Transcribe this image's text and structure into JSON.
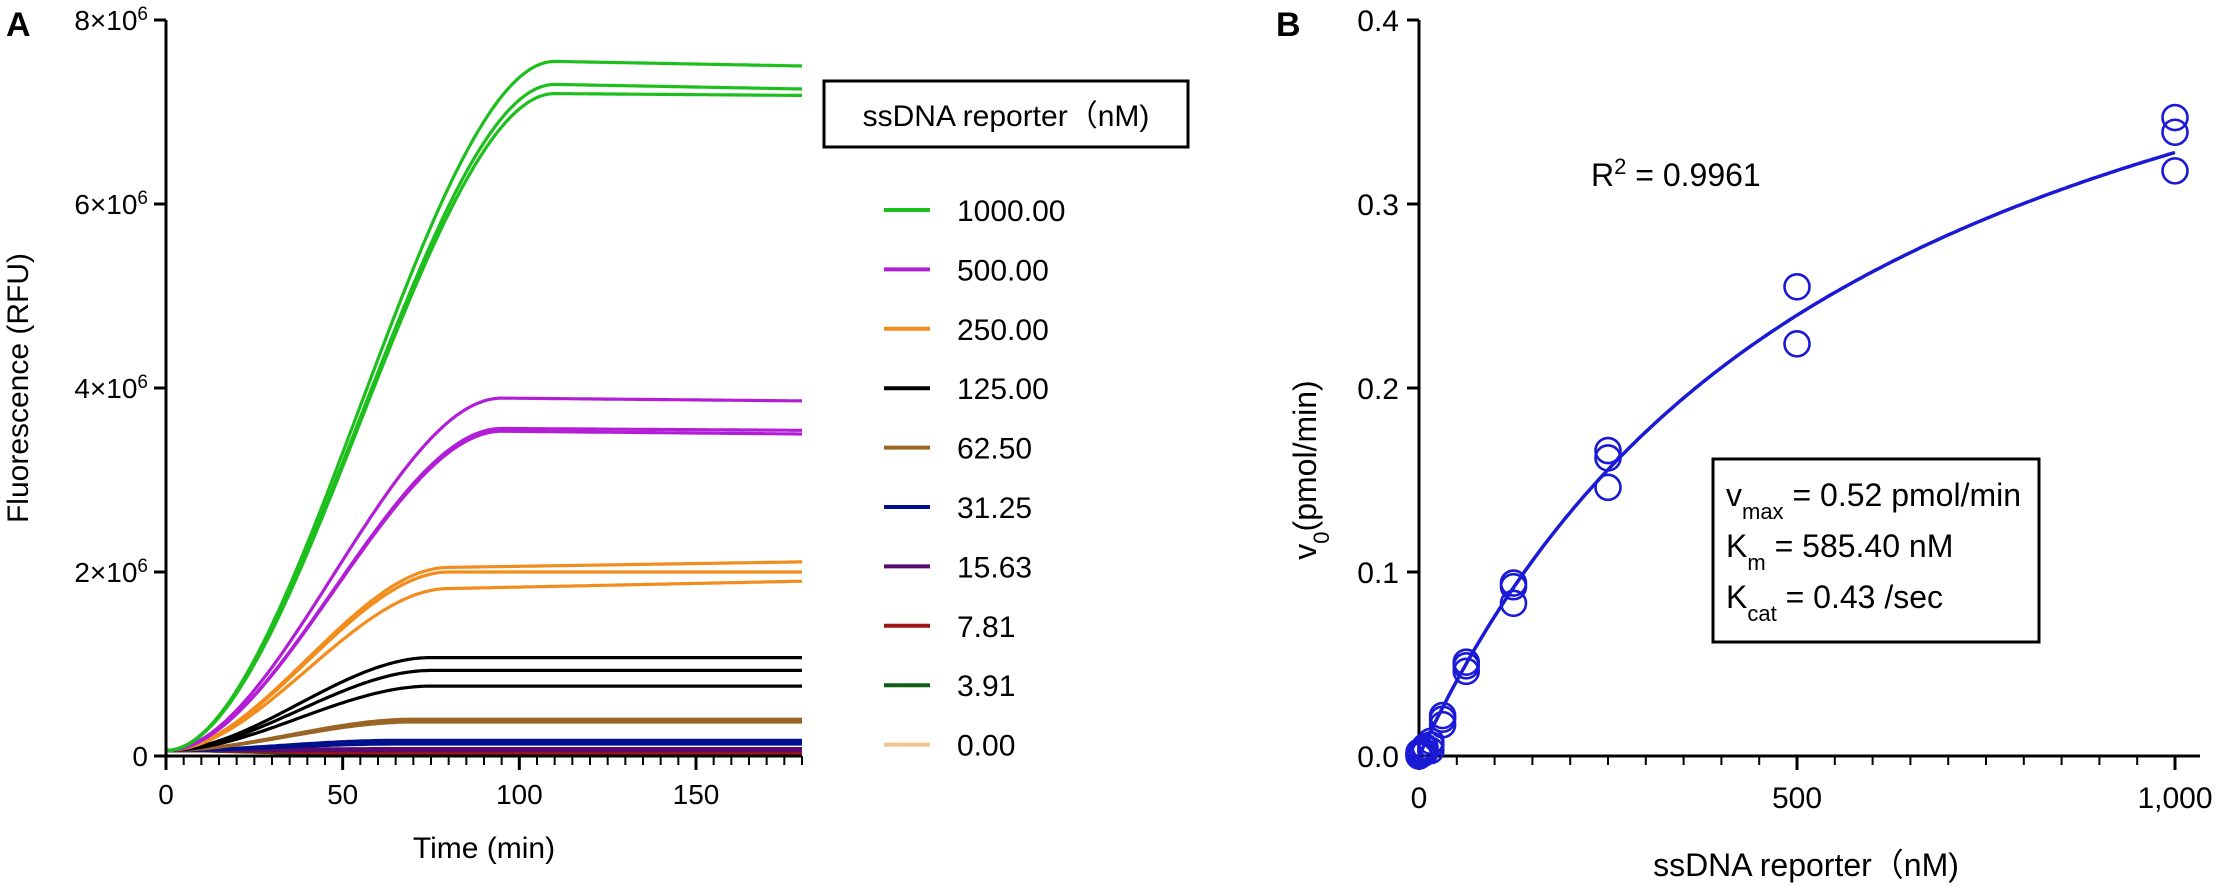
{
  "chart_data": [
    {
      "panel": "A",
      "type": "line",
      "xlabel": "Time (min)",
      "ylabel": "Fluorescence (RFU)",
      "xlim": [
        0,
        180
      ],
      "ylim": [
        0,
        8000000
      ],
      "xticks": [
        0,
        50,
        100,
        150
      ],
      "xtick_labels": [
        "0",
        "50",
        "100",
        "150"
      ],
      "yticks": [
        0,
        2000000,
        4000000,
        6000000,
        8000000
      ],
      "ytick_labels": [
        "0",
        "2×10",
        "4×10",
        "6×10",
        "8×10"
      ],
      "ytick_exponent": "6",
      "grid": false,
      "legend_title": "ssDNA reporter（nM)",
      "legend_position": "right",
      "series": [
        {
          "name": "1000.00",
          "color": "#1cbf1c",
          "replicate_plateaus": [
            7550000,
            7300000,
            7200000
          ],
          "t_plateau": 110,
          "end_drift": [
            -50000,
            -50000,
            -20000
          ]
        },
        {
          "name": "500.00",
          "color": "#b21ed6",
          "replicate_plateaus": [
            3890000,
            3560000,
            3530000
          ],
          "t_plateau": 95,
          "end_drift": [
            -30000,
            -20000,
            -30000
          ]
        },
        {
          "name": "250.00",
          "color": "#f28c1c",
          "replicate_plateaus": [
            2050000,
            2000000,
            1820000
          ],
          "t_plateau": 80,
          "end_drift": [
            60000,
            0,
            80000
          ]
        },
        {
          "name": "125.00",
          "color": "#000000",
          "replicate_plateaus": [
            1070000,
            930000,
            760000
          ],
          "t_plateau": 75,
          "end_drift": [
            0,
            0,
            0
          ]
        },
        {
          "name": "62.50",
          "color": "#9a6424",
          "replicate_plateaus": [
            400000,
            390000,
            370000
          ],
          "t_plateau": 70,
          "end_drift": [
            0,
            0,
            0
          ]
        },
        {
          "name": "31.25",
          "color": "#00108a",
          "replicate_plateaus": [
            170000,
            150000,
            130000
          ],
          "t_plateau": 65,
          "end_drift": [
            0,
            0,
            0
          ]
        },
        {
          "name": "15.63",
          "color": "#5a0a6e",
          "replicate_plateaus": [
            80000,
            70000,
            60000
          ],
          "t_plateau": 60,
          "end_drift": [
            0,
            0,
            0
          ]
        },
        {
          "name": "7.81",
          "color": "#a01414",
          "replicate_plateaus": [
            40000,
            35000,
            30000
          ],
          "t_plateau": 60,
          "end_drift": [
            0,
            0,
            0
          ]
        },
        {
          "name": "3.91",
          "color": "#0e5e14",
          "replicate_plateaus": [
            20000,
            18000,
            15000
          ],
          "t_plateau": 60,
          "end_drift": [
            0,
            0,
            0
          ]
        },
        {
          "name": "0.00",
          "color": "#f0c48a",
          "replicate_plateaus": [
            5000,
            4000,
            3000
          ],
          "t_plateau": 60,
          "end_drift": [
            0,
            0,
            0
          ]
        }
      ]
    },
    {
      "panel": "B",
      "type": "scatter",
      "xlabel": "ssDNA reporter（nM)",
      "ylabel": "v0(pmol/min)",
      "ylabel_main": "v",
      "ylabel_sub": "0",
      "ylabel_rest": "(pmol/min)",
      "xlim": [
        0,
        1000
      ],
      "ylim": [
        0,
        0.4
      ],
      "xticks": [
        0,
        500,
        1000
      ],
      "xtick_labels": [
        "0",
        "500",
        "1,000"
      ],
      "yticks": [
        0,
        0.1,
        0.2,
        0.3,
        0.4
      ],
      "ytick_labels": [
        "0.0",
        "0.1",
        "0.2",
        "0.3",
        "0.4"
      ],
      "grid": false,
      "color": "#1a1ad6",
      "points": [
        [
          0,
          0.0
        ],
        [
          0,
          0.001
        ],
        [
          0,
          0.002
        ],
        [
          3.91,
          0.001
        ],
        [
          3.91,
          0.002
        ],
        [
          3.91,
          0.003
        ],
        [
          7.81,
          0.002
        ],
        [
          7.81,
          0.004
        ],
        [
          7.81,
          0.005
        ],
        [
          15.63,
          0.003
        ],
        [
          15.63,
          0.006
        ],
        [
          15.63,
          0.008
        ],
        [
          31.25,
          0.017
        ],
        [
          31.25,
          0.02
        ],
        [
          31.25,
          0.022
        ],
        [
          62.5,
          0.046
        ],
        [
          62.5,
          0.049
        ],
        [
          62.5,
          0.051
        ],
        [
          125,
          0.083
        ],
        [
          125,
          0.092
        ],
        [
          125,
          0.094
        ],
        [
          250,
          0.146
        ],
        [
          250,
          0.162
        ],
        [
          250,
          0.166
        ],
        [
          500,
          0.224
        ],
        [
          500,
          0.255
        ],
        [
          1000,
          0.318
        ],
        [
          1000,
          0.339
        ],
        [
          1000,
          0.347
        ]
      ],
      "fit": {
        "model": "michaelis-menten",
        "vmax": 0.52,
        "km": 585.4
      },
      "r2_label": "R",
      "r2_sup": "2",
      "r2_value": " = 0.9961",
      "params": [
        {
          "main": "v",
          "sub": "max",
          "rest": " = 0.52 pmol/min"
        },
        {
          "main": "K",
          "sub": "m",
          "rest": " = 585.40 nM"
        },
        {
          "main": "K",
          "sub": "cat",
          "rest": " = 0.43 /sec"
        }
      ]
    }
  ]
}
